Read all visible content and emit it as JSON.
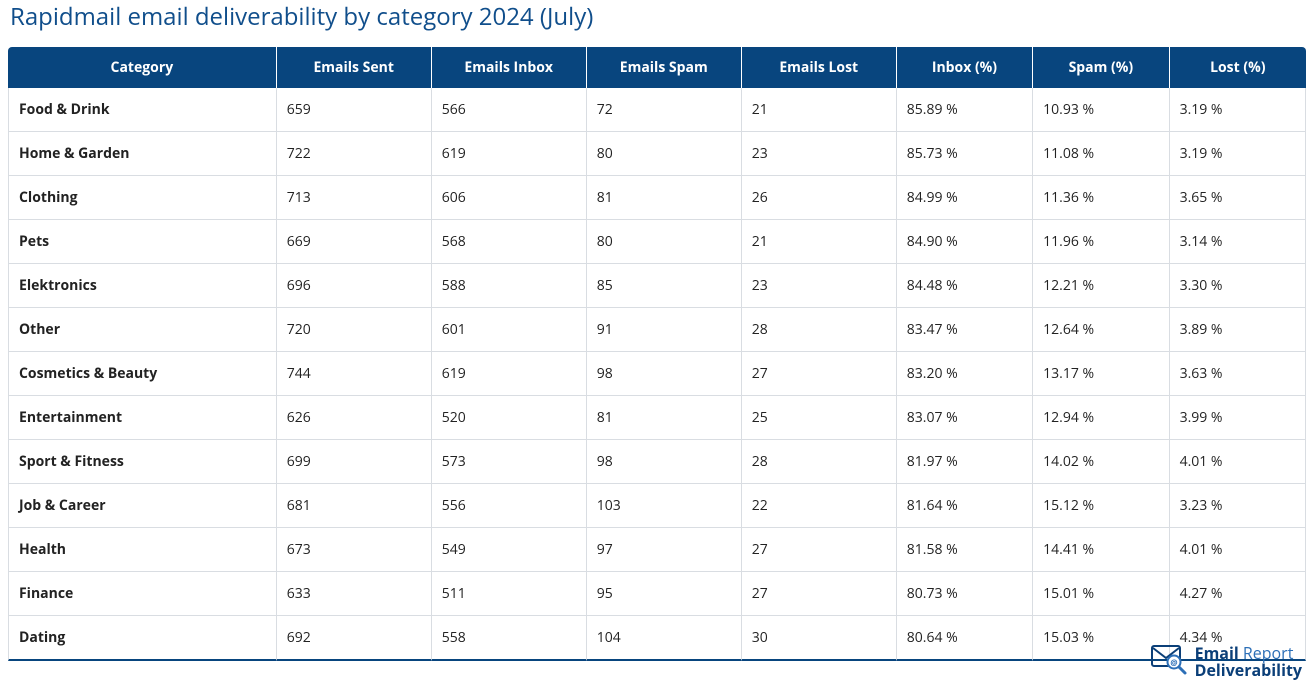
{
  "title": "Rapidmail email deliverability by category 2024 (July)",
  "table": {
    "type": "table",
    "header_bg": "#08457e",
    "header_fg": "#ffffff",
    "row_border": "#d9dde2",
    "title_color": "#104e8b",
    "columns": [
      "Category",
      "Emails Sent",
      "Emails Inbox",
      "Emails Spam",
      "Emails Lost",
      "Inbox (%)",
      "Spam (%)",
      "Lost (%)"
    ],
    "rows": [
      [
        "Food & Drink",
        "659",
        "566",
        "72",
        "21",
        "85.89 %",
        "10.93 %",
        "3.19 %"
      ],
      [
        "Home & Garden",
        "722",
        "619",
        "80",
        "23",
        "85.73 %",
        "11.08 %",
        "3.19 %"
      ],
      [
        "Clothing",
        "713",
        "606",
        "81",
        "26",
        "84.99 %",
        "11.36 %",
        "3.65 %"
      ],
      [
        "Pets",
        "669",
        "568",
        "80",
        "21",
        "84.90 %",
        "11.96 %",
        "3.14 %"
      ],
      [
        "Elektronics",
        "696",
        "588",
        "85",
        "23",
        "84.48 %",
        "12.21 %",
        "3.30 %"
      ],
      [
        "Other",
        "720",
        "601",
        "91",
        "28",
        "83.47 %",
        "12.64 %",
        "3.89 %"
      ],
      [
        "Cosmetics & Beauty",
        "744",
        "619",
        "98",
        "27",
        "83.20 %",
        "13.17 %",
        "3.63 %"
      ],
      [
        "Entertainment",
        "626",
        "520",
        "81",
        "25",
        "83.07 %",
        "12.94 %",
        "3.99 %"
      ],
      [
        "Sport & Fitness",
        "699",
        "573",
        "98",
        "28",
        "81.97 %",
        "14.02 %",
        "4.01 %"
      ],
      [
        "Job & Career",
        "681",
        "556",
        "103",
        "22",
        "81.64 %",
        "15.12 %",
        "3.23 %"
      ],
      [
        "Health",
        "673",
        "549",
        "97",
        "27",
        "81.58 %",
        "14.41 %",
        "4.01 %"
      ],
      [
        "Finance",
        "633",
        "511",
        "95",
        "27",
        "80.73 %",
        "15.01 %",
        "4.27 %"
      ],
      [
        "Dating",
        "692",
        "558",
        "104",
        "30",
        "80.64 %",
        "15.03 %",
        "4.34 %"
      ]
    ]
  },
  "logo": {
    "line1a": "Email",
    "line1b": "Report",
    "line2": "Deliverability",
    "icon_primary": "#0b3f78",
    "icon_accent": "#2c6fb7"
  }
}
